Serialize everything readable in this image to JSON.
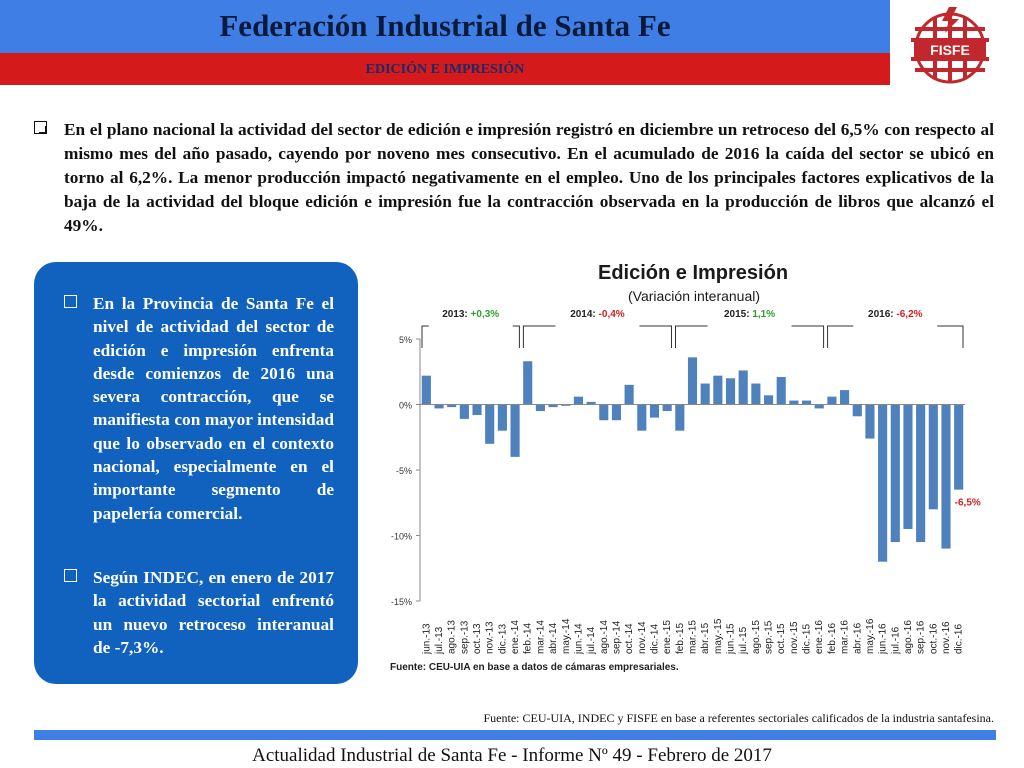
{
  "header": {
    "title": "Federación Industrial de Santa Fe",
    "subtitle": "EDICIÓN E IMPRESIÓN",
    "logo_text": "FISFE"
  },
  "intro": {
    "text": "En el plano nacional la actividad del sector de edición e impresión registró en diciembre un retroceso del 6,5% con respecto al mismo mes del año pasado, cayendo por noveno mes consecutivo. En el acumulado de 2016 la caída del sector se ubicó en torno al 6,2%. La menor producción impactó negativamente en el empleo. Uno de los principales factores explicativos de la baja de la actividad del bloque edición e impresión fue la contracción observada en la producción de libros que alcanzó el 49%."
  },
  "sidebar": {
    "items": [
      "En la Provincia de Santa Fe el nivel de actividad del sector de edición e impresión enfrenta desde comienzos de 2016 una severa contracción, que se manifiesta con mayor intensidad que lo observado en el contexto nacional, especialmente en el importante segmento de papelería comercial.",
      "Según INDEC, en enero de 2017 la actividad sectorial enfrentó un nuevo retroceso interanual de -7,3%."
    ]
  },
  "chart_data": {
    "type": "bar",
    "title": "Edición e Impresión",
    "subtitle": "(Variación interanual)",
    "source": "Fuente: CEU-UIA en base a datos de cámaras empresariales.",
    "categories": [
      "jun.-13",
      "jul.-13",
      "ago.-13",
      "sep.-13",
      "oct.-13",
      "nov.-13",
      "dic.-13",
      "ene.-14",
      "feb.-14",
      "mar.-14",
      "abr.-14",
      "may.-14",
      "jun.-14",
      "jul.-14",
      "ago.-14",
      "sep.-14",
      "oct.-14",
      "nov.-14",
      "dic.-14",
      "ene.-15",
      "feb.-15",
      "mar.-15",
      "abr.-15",
      "may.-15",
      "jun.-15",
      "jul.-15",
      "ago.-15",
      "sep.-15",
      "oct.-15",
      "nov.-15",
      "dic.-15",
      "ene.-16",
      "feb.-16",
      "mar.-16",
      "abr.-16",
      "may.-16",
      "jun.-16",
      "jul.-16",
      "ago.-16",
      "sep.-16",
      "oct.-16",
      "nov.-16",
      "dic.-16"
    ],
    "values": [
      2.2,
      -0.3,
      -0.2,
      -1.1,
      -0.8,
      -3.0,
      -2.0,
      -4.0,
      3.3,
      -0.5,
      -0.2,
      -0.1,
      0.6,
      0.2,
      -1.2,
      -1.2,
      1.5,
      -2.0,
      -1.0,
      -0.5,
      -2.0,
      3.6,
      1.6,
      2.2,
      2.0,
      2.6,
      1.6,
      0.7,
      2.1,
      0.3,
      0.3,
      -0.3,
      0.6,
      1.1,
      -0.9,
      -2.6,
      -12.0,
      -10.5,
      -9.5,
      -10.5,
      -8.0,
      -11.0,
      -6.5
    ],
    "ylim": [
      -15,
      5
    ],
    "yticks": [
      5,
      0,
      -5,
      -10,
      -15
    ],
    "ytick_labels": [
      "5%",
      "0%",
      "-5%",
      "-10%",
      "-15%"
    ],
    "bar_color": "#4f81bd",
    "grid": false,
    "annotations": [
      {
        "text": "-6,5%",
        "category": "dic.-16",
        "color": "#d42020"
      }
    ],
    "year_groups": [
      {
        "label": "2013:",
        "value": "+0,3%",
        "value_color": "#2ca02c",
        "start": "jun.-13",
        "end": "ene.-14"
      },
      {
        "label": "2014:",
        "value": "-0,4%",
        "value_color": "#d42020",
        "start": "feb.-14",
        "end": "ene.-15"
      },
      {
        "label": "2015:",
        "value": "1,1%",
        "value_color": "#2ca02c",
        "start": "feb.-15",
        "end": "ene.-16"
      },
      {
        "label": "2016:",
        "value": "-6,2%",
        "value_color": "#d42020",
        "start": "feb.-16",
        "end": "dic.-16"
      }
    ]
  },
  "footer": {
    "source": "Fuente: CEU-UIA, INDEC y FISFE en base a referentes sectoriales calificados de la industria santafesina.",
    "text": "Actualidad Industrial de Santa Fe - Informe Nº 49 - Febrero de 2017"
  },
  "colors": {
    "header_blue": "#3f7fe5",
    "header_red": "#d41a1a",
    "box_blue": "#1161be"
  }
}
